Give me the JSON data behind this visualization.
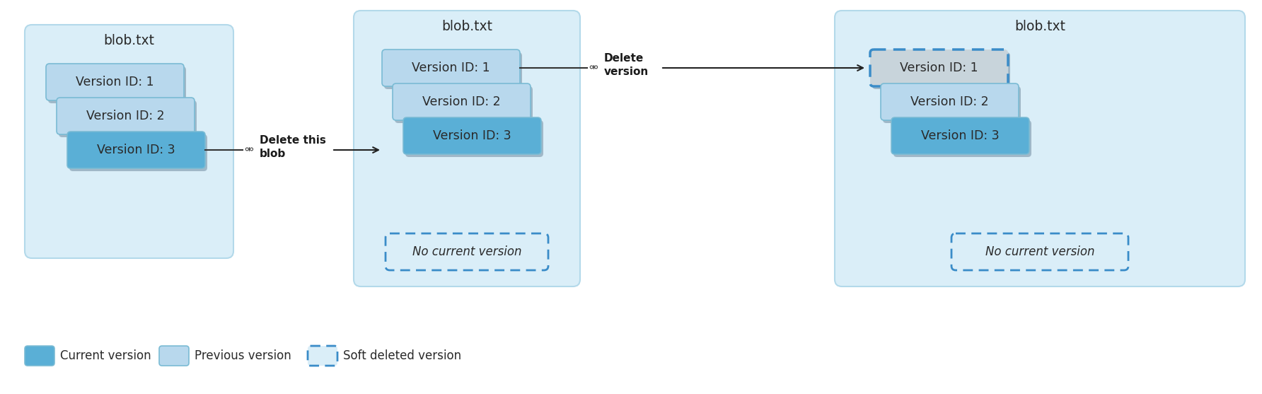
{
  "bg_color": "#ffffff",
  "container_bg": "#daeef8",
  "container_border": "#b3d9ea",
  "prev_version_color": "#b8d8ed",
  "curr_version_color": "#5aafd6",
  "soft_deleted_color": "#c8d4db",
  "dashed_border_color": "#3a8cc8",
  "shadow_color": "#a0b8c8",
  "text_color": "#2a2a2a",
  "title": "blob.txt",
  "version_labels": [
    "Version ID: 1",
    "Version ID: 2",
    "Version ID: 3"
  ],
  "no_current_label": "No current version",
  "delete_blob_label": "Delete this\nblob",
  "delete_version_label": "Delete\nversion"
}
